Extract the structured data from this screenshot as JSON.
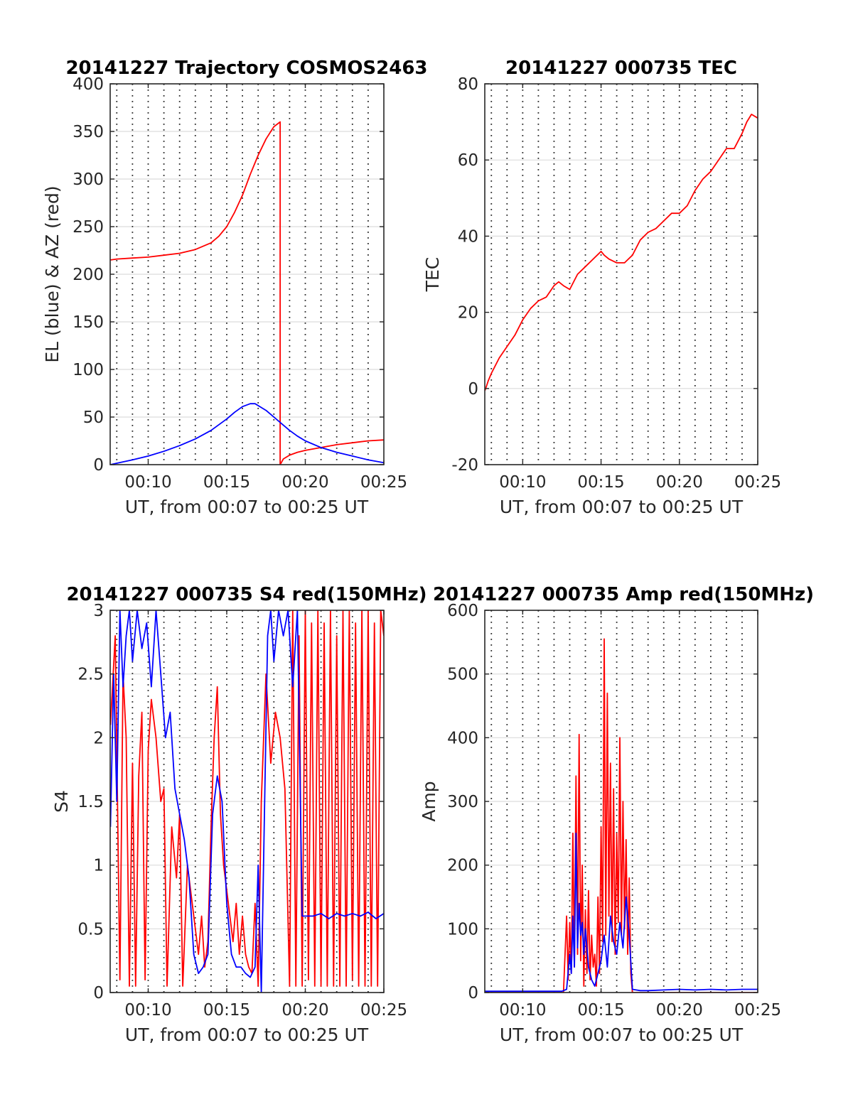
{
  "charts": [
    {
      "type": "line",
      "title": "20141227 Trajectory COSMOS2463",
      "xlabel": "UT, from 00:07 to 00:25 UT",
      "ylabel": "EL (blue) & AZ (red)",
      "xlim": [
        7.58,
        25
      ],
      "ylim": [
        0,
        400
      ],
      "xticks": [
        10,
        15,
        20,
        25
      ],
      "xtick_labels": [
        "00:10",
        "00:15",
        "00:20",
        "00:25"
      ],
      "yticks": [
        0,
        50,
        100,
        150,
        200,
        250,
        300,
        350,
        400
      ],
      "ytick_labels": [
        "0",
        "50",
        "100",
        "150",
        "200",
        "250",
        "300",
        "350",
        "400"
      ],
      "grid": "horizontal solid, vertical dotted",
      "series": [
        {
          "color": "#ff0000",
          "x": [
            7.6,
            8,
            9,
            10,
            11,
            12,
            13,
            14,
            14.5,
            15,
            15.5,
            16,
            16.5,
            17,
            17.5,
            18.0,
            18.4,
            18.4,
            18.6,
            19,
            19.5,
            20,
            21,
            22,
            23,
            24,
            25
          ],
          "y": [
            215,
            216,
            217,
            218,
            220,
            222,
            226,
            233,
            240,
            250,
            265,
            283,
            305,
            325,
            342,
            355,
            360,
            0,
            6,
            10,
            13,
            15,
            18,
            21,
            23,
            25,
            26
          ]
        },
        {
          "color": "#0000ff",
          "x": [
            7.6,
            8,
            9,
            10,
            11,
            12,
            13,
            14,
            15,
            15.5,
            16,
            16.5,
            16.8,
            17,
            17.5,
            18,
            18.5,
            19,
            19.5,
            20,
            21,
            22,
            23,
            24,
            25
          ],
          "y": [
            0,
            1.5,
            5,
            9,
            14,
            20,
            27,
            36,
            48,
            55,
            61,
            64,
            64,
            62,
            57,
            50,
            43,
            36,
            30,
            25,
            18,
            13,
            9,
            5,
            2
          ]
        }
      ]
    },
    {
      "type": "line",
      "title": "20141227 000735 TEC",
      "xlabel": "UT, from 00:07 to 00:25 UT",
      "ylabel": "TEC",
      "xlim": [
        7.58,
        25
      ],
      "ylim": [
        -20,
        80
      ],
      "xticks": [
        10,
        15,
        20,
        25
      ],
      "xtick_labels": [
        "00:10",
        "00:15",
        "00:20",
        "00:25"
      ],
      "yticks": [
        -20,
        0,
        20,
        40,
        60,
        80
      ],
      "ytick_labels": [
        "-20",
        "0",
        "20",
        "40",
        "60",
        "80"
      ],
      "grid": "horizontal solid, vertical dotted",
      "series": [
        {
          "color": "#ff0000",
          "x": [
            7.6,
            7.8,
            8,
            8.5,
            9,
            9.5,
            10,
            10.5,
            11,
            11.5,
            12,
            12.3,
            12.6,
            13,
            13.5,
            14,
            14.5,
            15,
            15.2,
            15.5,
            16,
            16.5,
            17,
            17.5,
            18,
            18.5,
            19,
            19.5,
            20,
            20.5,
            21,
            21.5,
            22,
            22.5,
            23,
            23.5,
            24,
            24.3,
            24.6,
            25
          ],
          "y": [
            -0.5,
            2,
            4,
            8,
            11,
            14,
            18,
            21,
            23,
            24,
            27,
            28,
            27,
            26,
            30,
            32,
            34,
            36,
            35,
            34,
            33,
            33,
            35,
            39,
            41,
            42,
            44,
            46,
            46,
            48,
            52,
            55,
            57,
            60,
            63,
            63,
            67,
            70,
            72,
            71
          ]
        }
      ]
    },
    {
      "type": "line",
      "title": "20141227 000735 S4 red(150MHz)",
      "xlabel": "UT, from 00:07 to 00:25 UT",
      "ylabel": "S4",
      "xlim": [
        7.58,
        25
      ],
      "ylim": [
        0,
        3
      ],
      "xticks": [
        10,
        15,
        20,
        25
      ],
      "xtick_labels": [
        "00:10",
        "00:15",
        "00:20",
        "00:25"
      ],
      "yticks": [
        0,
        0.5,
        1,
        1.5,
        2,
        2.5,
        3
      ],
      "ytick_labels": [
        "0",
        "0.5",
        "1",
        "1.5",
        "2",
        "2.5",
        "3"
      ],
      "grid": "horizontal solid, vertical dotted",
      "series": [
        {
          "color": "#ff0000",
          "x": [
            7.6,
            7.9,
            8.2,
            8.4,
            8.6,
            8.8,
            9.0,
            9.2,
            9.4,
            9.6,
            9.8,
            10.0,
            10.2,
            10.5,
            10.8,
            11.0,
            11.2,
            11.5,
            11.8,
            12.0,
            12.2,
            12.5,
            12.8,
            13.0,
            13.2,
            13.4,
            13.6,
            13.8,
            14.0,
            14.2,
            14.4,
            14.6,
            14.8,
            15.0,
            15.2,
            15.4,
            15.6,
            15.8,
            16.0,
            16.2,
            16.4,
            16.6,
            16.8,
            17.0,
            17.2,
            17.5,
            17.8,
            18.1,
            18.4,
            18.7,
            19.0,
            19.2,
            19.4,
            19.6,
            19.8,
            20.0,
            20.2,
            20.4,
            20.6,
            20.8,
            21.0,
            21.2,
            21.4,
            21.6,
            21.8,
            22.0,
            22.2,
            22.4,
            22.6,
            22.8,
            23.0,
            23.2,
            23.4,
            23.6,
            23.8,
            24.0,
            24.2,
            24.4,
            24.6,
            24.8,
            25.0
          ],
          "y": [
            2.1,
            2.8,
            0.1,
            2.5,
            2.0,
            0.05,
            1.8,
            0.05,
            1.7,
            2.2,
            0.1,
            1.9,
            2.3,
            2.0,
            1.5,
            1.6,
            0.05,
            1.3,
            0.9,
            1.4,
            0.05,
            1.0,
            0.7,
            0.5,
            0.3,
            0.6,
            0.2,
            0.4,
            1.3,
            2.0,
            2.4,
            1.4,
            1.0,
            0.8,
            0.6,
            0.4,
            0.7,
            0.3,
            0.6,
            0.3,
            0.2,
            0.15,
            0.7,
            0.05,
            1.5,
            2.5,
            1.8,
            2.2,
            2.0,
            1.6,
            0.05,
            3.0,
            0.05,
            2.8,
            0.05,
            3.0,
            0.1,
            2.9,
            0.05,
            3.0,
            0.05,
            2.9,
            0.05,
            3.0,
            0.05,
            2.8,
            0.05,
            3.0,
            0.05,
            3.0,
            0.1,
            2.9,
            0.05,
            3.0,
            0.05,
            3.0,
            0.05,
            2.9,
            0.05,
            3.0,
            2.8
          ]
        },
        {
          "color": "#0000ff",
          "x": [
            7.6,
            7.8,
            8.0,
            8.2,
            8.4,
            8.6,
            8.8,
            9.0,
            9.3,
            9.6,
            9.9,
            10.2,
            10.5,
            10.8,
            11.1,
            11.4,
            11.7,
            12.0,
            12.3,
            12.6,
            12.9,
            13.2,
            13.5,
            13.8,
            14.1,
            14.4,
            14.7,
            15.0,
            15.3,
            15.6,
            15.9,
            16.2,
            16.5,
            16.8,
            17.0,
            17.2,
            17.4,
            17.6,
            17.8,
            18.0,
            18.3,
            18.6,
            18.9,
            19.2,
            19.5,
            19.8,
            20.1,
            20.5,
            21.0,
            21.5,
            22.0,
            22.5,
            23.0,
            23.5,
            24.0,
            24.5,
            25.0
          ],
          "y": [
            1.3,
            2.5,
            1.5,
            3.0,
            2.4,
            2.8,
            3.0,
            2.6,
            3.0,
            2.7,
            2.9,
            2.4,
            3.0,
            2.5,
            2.0,
            2.2,
            1.6,
            1.4,
            1.2,
            0.9,
            0.3,
            0.15,
            0.2,
            0.3,
            1.4,
            1.7,
            1.5,
            0.7,
            0.3,
            0.2,
            0.2,
            0.15,
            0.12,
            0.2,
            1.0,
            0.0,
            1.4,
            2.8,
            3.0,
            2.6,
            3.0,
            2.8,
            3.0,
            2.4,
            3.0,
            0.6,
            0.6,
            0.6,
            0.62,
            0.58,
            0.62,
            0.6,
            0.62,
            0.6,
            0.63,
            0.58,
            0.62
          ]
        }
      ]
    },
    {
      "type": "line",
      "title": "20141227 000735 Amp red(150MHz)",
      "xlabel": "UT, from 00:07 to 00:25 UT",
      "ylabel": "Amp",
      "xlim": [
        7.58,
        25
      ],
      "ylim": [
        0,
        600
      ],
      "xticks": [
        10,
        15,
        20,
        25
      ],
      "xtick_labels": [
        "00:10",
        "00:15",
        "00:20",
        "00:25"
      ],
      "yticks": [
        0,
        100,
        200,
        300,
        400,
        500,
        600
      ],
      "ytick_labels": [
        "0",
        "100",
        "200",
        "300",
        "400",
        "500",
        "600"
      ],
      "grid": "horizontal solid, vertical dotted",
      "series": [
        {
          "color": "#ff0000",
          "x": [
            7.6,
            9,
            10,
            11,
            12,
            12.6,
            12.8,
            12.9,
            13.0,
            13.1,
            13.2,
            13.3,
            13.4,
            13.5,
            13.6,
            13.7,
            13.8,
            13.9,
            14.0,
            14.1,
            14.2,
            14.3,
            14.4,
            14.5,
            14.6,
            14.7,
            14.8,
            14.9,
            15.0,
            15.1,
            15.2,
            15.3,
            15.4,
            15.5,
            15.6,
            15.7,
            15.8,
            15.9,
            16.0,
            16.1,
            16.2,
            16.3,
            16.4,
            16.5,
            16.6,
            16.7,
            16.8,
            16.9,
            17.0,
            18,
            19,
            20,
            21,
            22,
            23,
            24,
            25
          ],
          "y": [
            0,
            0,
            0,
            0,
            0,
            0,
            120,
            20,
            110,
            30,
            250,
            40,
            340,
            60,
            405,
            50,
            200,
            10,
            130,
            30,
            160,
            20,
            90,
            40,
            60,
            10,
            150,
            30,
            260,
            80,
            555,
            90,
            470,
            120,
            360,
            80,
            320,
            60,
            250,
            110,
            400,
            90,
            300,
            100,
            240,
            60,
            180,
            30,
            0,
            0,
            0,
            0,
            0,
            0,
            0,
            0,
            0
          ]
        },
        {
          "color": "#0000ff",
          "x": [
            7.6,
            9,
            10,
            11,
            12,
            12.5,
            12.8,
            13.0,
            13.1,
            13.2,
            13.3,
            13.4,
            13.5,
            13.6,
            13.7,
            13.8,
            13.9,
            14.0,
            14.2,
            14.4,
            14.6,
            14.8,
            15.0,
            15.2,
            15.4,
            15.6,
            15.8,
            16.0,
            16.2,
            16.4,
            16.6,
            16.8,
            17.0,
            17.5,
            18,
            19,
            20,
            21,
            22,
            23,
            24,
            25
          ],
          "y": [
            2,
            2,
            2,
            2,
            2,
            2,
            5,
            60,
            30,
            120,
            40,
            250,
            70,
            140,
            90,
            110,
            60,
            100,
            40,
            20,
            10,
            30,
            50,
            90,
            40,
            120,
            80,
            60,
            110,
            70,
            150,
            90,
            5,
            3,
            3,
            4,
            5,
            4,
            5,
            4,
            5,
            5
          ]
        }
      ]
    }
  ]
}
